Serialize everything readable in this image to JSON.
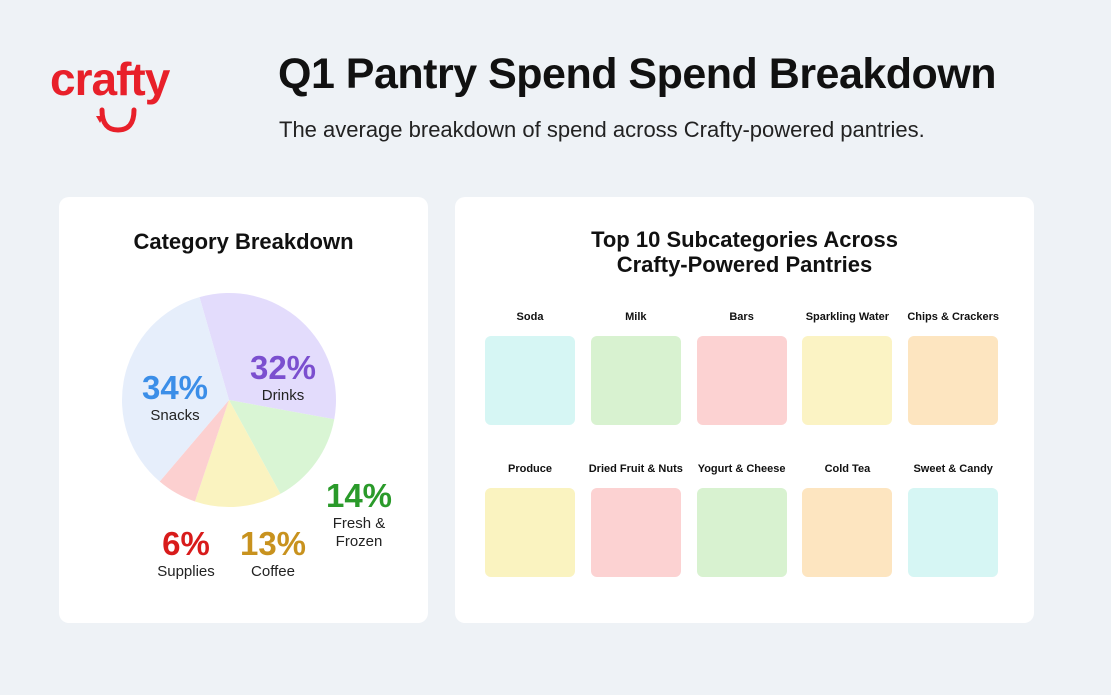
{
  "brand": "crafty",
  "title": "Q1 Pantry Spend Spend Breakdown",
  "subtitle": "The average breakdown of spend across Crafty-powered pantries.",
  "chart_data": {
    "type": "pie",
    "title": "Category Breakdown",
    "categories": [
      "Drinks",
      "Fresh & Frozen",
      "Coffee",
      "Supplies",
      "Snacks"
    ],
    "values": [
      32,
      14,
      13,
      6,
      34
    ],
    "value_labels": [
      "32%",
      "14%",
      "13%",
      "6%",
      "34%"
    ],
    "colors": [
      "#e3dcfc",
      "#d9f5d4",
      "#faf3c0",
      "#fcd0d0",
      "#e6eefb"
    ],
    "label_colors": [
      "#7b4fcf",
      "#2a9a2a",
      "#c8921e",
      "#d81b1b",
      "#3b8ee8"
    ]
  },
  "subcategories": {
    "title": "Top 10 Subcategories Across Crafty-Powered Pantries",
    "items": [
      {
        "label": "Soda",
        "color": "#d6f6f4"
      },
      {
        "label": "Milk",
        "color": "#d8f2d0"
      },
      {
        "label": "Bars",
        "color": "#fcd2d2"
      },
      {
        "label": "Sparkling Water",
        "color": "#fbf3c4"
      },
      {
        "label": "Chips & Crackers",
        "color": "#fde5c0"
      },
      {
        "label": "Produce",
        "color": "#faf3c0"
      },
      {
        "label": "Dried Fruit & Nuts",
        "color": "#fcd2d2"
      },
      {
        "label": "Yogurt & Cheese",
        "color": "#d8f2d0"
      },
      {
        "label": "Cold Tea",
        "color": "#fde5c0"
      },
      {
        "label": "Sweet & Candy",
        "color": "#d6f6f4"
      }
    ]
  }
}
